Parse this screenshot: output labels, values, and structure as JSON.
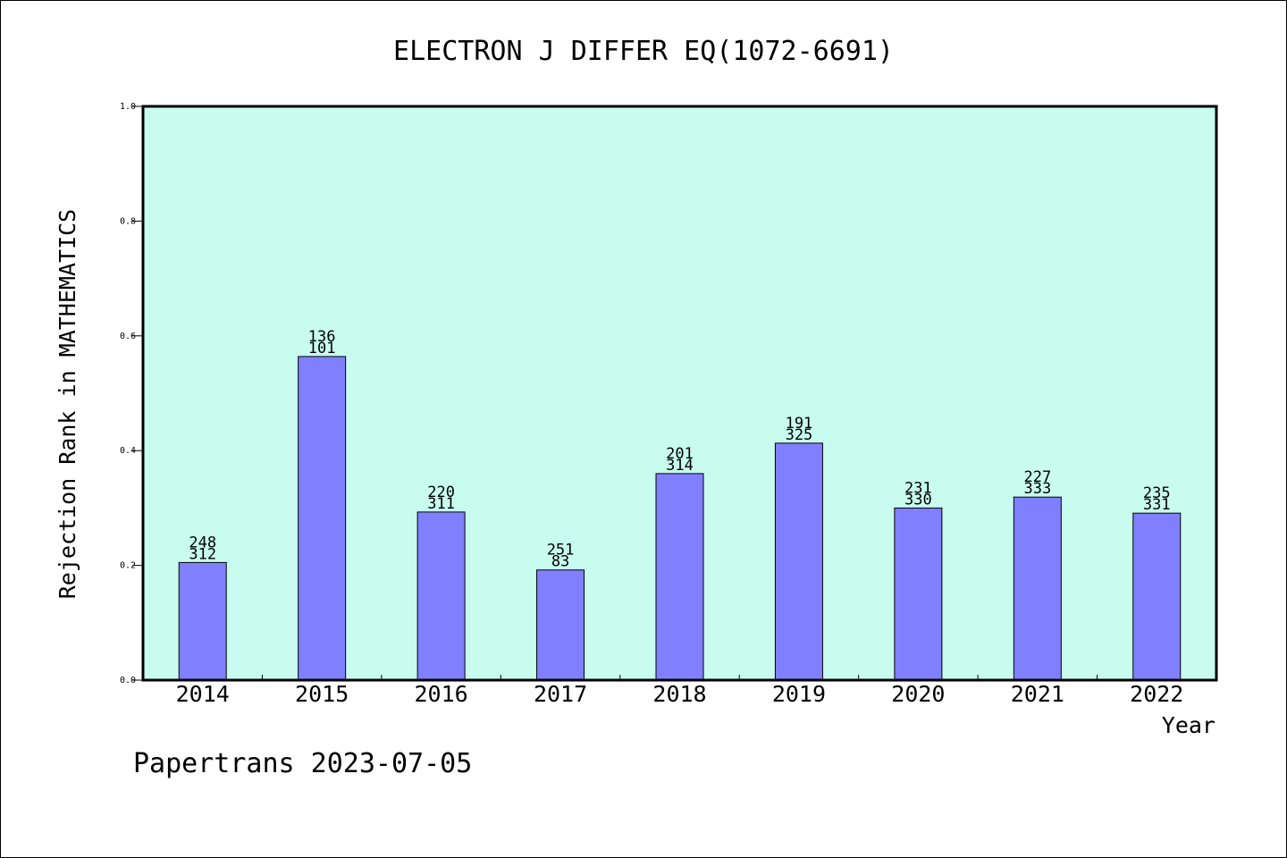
{
  "chart_data": {
    "type": "bar",
    "title": "ELECTRON J DIFFER EQ(1072-6691)",
    "xlabel": "Year",
    "ylabel": "Rejection Rank in MATHEMATICS",
    "ylim": [
      0,
      1.0
    ],
    "yticks": [
      "0.0",
      "0.2",
      "0.4",
      "0.6",
      "0.8",
      "1.0"
    ],
    "grid": false,
    "plot_background": "#c8fcee",
    "bar_color": "#8080ff",
    "categories": [
      "2014",
      "2015",
      "2016",
      "2017",
      "2018",
      "2019",
      "2020",
      "2021",
      "2022"
    ],
    "values": [
      0.205,
      0.564,
      0.293,
      0.192,
      0.36,
      0.413,
      0.3,
      0.319,
      0.291
    ],
    "labels_top": [
      "248",
      "136",
      "220",
      "251",
      "201",
      "191",
      "231",
      "227",
      "235"
    ],
    "labels_bottom": [
      "312",
      "101",
      "311",
      "83",
      "314",
      "325",
      "330",
      "333",
      "331"
    ]
  },
  "footer": "Papertrans 2023-07-05"
}
